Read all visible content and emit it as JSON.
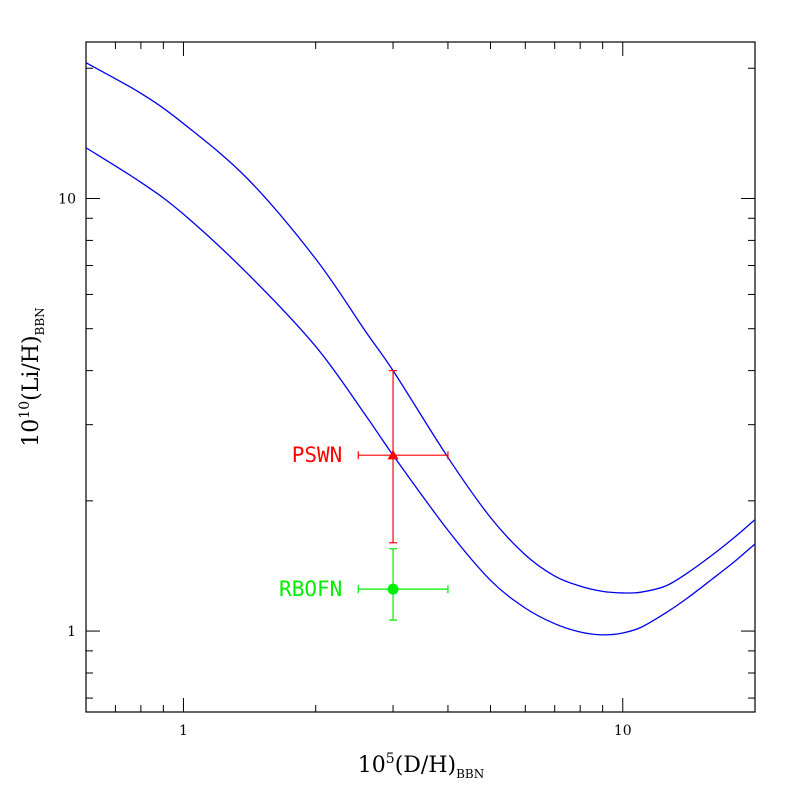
{
  "chart_data": {
    "type": "line",
    "x_scale": "log",
    "y_scale": "log",
    "xlim": [
      0.6,
      20
    ],
    "ylim": [
      0.65,
      23
    ],
    "grid": false,
    "x_ticks": [
      {
        "value": 1,
        "label": "1"
      },
      {
        "value": 10,
        "label": "10"
      }
    ],
    "y_ticks": [
      {
        "value": 1,
        "label": "1"
      },
      {
        "value": 10,
        "label": "10"
      }
    ],
    "xlabel": {
      "prefix": "10",
      "sup": "5",
      "main": "(D/H)",
      "sub": "BBN"
    },
    "ylabel": {
      "prefix": "10",
      "sup": "10",
      "main": "(Li/H)",
      "sub": "BBN"
    },
    "series": [
      {
        "color": "#0000ee",
        "x": [
          0.6,
          0.8,
          1.0,
          1.4,
          2.0,
          2.6,
          3.0,
          4.0,
          5.0,
          6.0,
          7.0,
          8.0,
          9.0,
          10.0,
          11.0,
          12.5,
          14.0,
          16.0,
          18.0,
          20.0
        ],
        "y": [
          20.6,
          17.5,
          14.9,
          11.1,
          7.25,
          4.92,
          4.0,
          2.52,
          1.83,
          1.5,
          1.34,
          1.27,
          1.235,
          1.225,
          1.23,
          1.27,
          1.36,
          1.5,
          1.65,
          1.81
        ]
      },
      {
        "color": "#0000ee",
        "x": [
          0.6,
          0.8,
          1.0,
          1.4,
          2.0,
          2.6,
          3.0,
          4.0,
          5.0,
          6.0,
          7.0,
          8.0,
          9.0,
          10.0,
          11.0,
          12.5,
          14.0,
          16.0,
          18.0,
          20.0
        ],
        "y": [
          13.1,
          10.9,
          9.2,
          6.7,
          4.55,
          3.15,
          2.55,
          1.71,
          1.31,
          1.13,
          1.04,
          0.995,
          0.98,
          0.99,
          1.02,
          1.1,
          1.19,
          1.32,
          1.45,
          1.59
        ]
      }
    ],
    "points": [
      {
        "label": "PSWN",
        "color": "#ff0000",
        "marker": "triangle",
        "x": 3.0,
        "y": 2.55,
        "xerr": [
          2.5,
          4.0
        ],
        "yerr": [
          1.6,
          4.0
        ]
      },
      {
        "label": "RBOFN",
        "color": "#00ee00",
        "marker": "circle",
        "x": 3.0,
        "y": 1.25,
        "xerr": [
          2.5,
          4.0
        ],
        "yerr": [
          1.06,
          1.55
        ]
      }
    ]
  }
}
